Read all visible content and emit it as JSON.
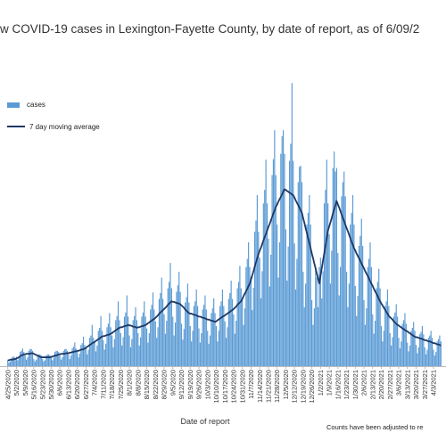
{
  "chart_data": {
    "type": "bar",
    "title": "w COVID-19 cases in Lexington-Fayette County, by date of report, as of 6/09/2",
    "x_label": "Date of report",
    "note": "Counts have been adjusted to re",
    "ylim": [
      0,
      500
    ],
    "categories": [
      "4/25/2020",
      null,
      null,
      null,
      null,
      null,
      null,
      "5/2/2020",
      null,
      null,
      null,
      null,
      null,
      null,
      "5/9/2020",
      null,
      null,
      null,
      null,
      null,
      null,
      "5/16/2020",
      null,
      null,
      null,
      null,
      null,
      null,
      "5/23/2020",
      null,
      null,
      null,
      null,
      null,
      null,
      "5/30/2020",
      null,
      null,
      null,
      null,
      null,
      null,
      "6/6/2020",
      null,
      null,
      null,
      null,
      null,
      null,
      "6/13/2020",
      null,
      null,
      null,
      null,
      null,
      null,
      "6/20/2020",
      null,
      null,
      null,
      null,
      null,
      null,
      "6/27/2020",
      null,
      null,
      null,
      null,
      null,
      null,
      "7/4/2020",
      null,
      null,
      null,
      null,
      null,
      null,
      "7/11/2020",
      null,
      null,
      null,
      null,
      null,
      null,
      "7/18/2020",
      null,
      null,
      null,
      null,
      null,
      null,
      "7/25/2020",
      null,
      null,
      null,
      null,
      null,
      null,
      "8/1/2020",
      null,
      null,
      null,
      null,
      null,
      null,
      "8/8/2020",
      null,
      null,
      null,
      null,
      null,
      null,
      "8/15/2020",
      null,
      null,
      null,
      null,
      null,
      null,
      "8/22/2020",
      null,
      null,
      null,
      null,
      null,
      null,
      "8/29/2020",
      null,
      null,
      null,
      null,
      null,
      null,
      "9/5/2020",
      null,
      null,
      null,
      null,
      null,
      null,
      "9/12/2020",
      null,
      null,
      null,
      null,
      null,
      null,
      "9/19/2020",
      null,
      null,
      null,
      null,
      null,
      null,
      "9/26/2020",
      null,
      null,
      null,
      null,
      null,
      null,
      "10/3/2020",
      null,
      null,
      null,
      null,
      null,
      null,
      "10/10/2020",
      null,
      null,
      null,
      null,
      null,
      null,
      "10/17/2020",
      null,
      null,
      null,
      null,
      null,
      null,
      "10/24/2020",
      null,
      null,
      null,
      null,
      null,
      null,
      "10/31/2020",
      null,
      null,
      null,
      null,
      null,
      null,
      "11/7/2020",
      null,
      null,
      null,
      null,
      null,
      null,
      "11/14/2020",
      null,
      null,
      null,
      null,
      null,
      null,
      "11/21/2020",
      null,
      null,
      null,
      null,
      null,
      null,
      "11/28/2020",
      null,
      null,
      null,
      null,
      null,
      null,
      "12/5/2020",
      null,
      null,
      null,
      null,
      null,
      null,
      "12/12/2020",
      null,
      null,
      null,
      null,
      null,
      null,
      "12/19/2020",
      null,
      null,
      null,
      null,
      null,
      null,
      "12/26/2020",
      null,
      null,
      null,
      null,
      null,
      null,
      "1/2/2021",
      null,
      null,
      null,
      null,
      null,
      null,
      "1/9/2021",
      null,
      null,
      null,
      null,
      null,
      null,
      "1/16/2021",
      null,
      null,
      null,
      null,
      null,
      null,
      "1/23/2021",
      null,
      null,
      null,
      null,
      null,
      null,
      "1/30/2021",
      null,
      null,
      null,
      null,
      null,
      null,
      "2/6/2021",
      null,
      null,
      null,
      null,
      null,
      null,
      "2/13/2021",
      null,
      null,
      null,
      null,
      null,
      null,
      "2/20/2021",
      null,
      null,
      null,
      null,
      null,
      null,
      "2/27/2021",
      null,
      null,
      null,
      null,
      null,
      null,
      "3/6/2021",
      null,
      null,
      null,
      null,
      null,
      null,
      "3/13/2021",
      null,
      null,
      null,
      null,
      null,
      null,
      "3/20/2021",
      null,
      null,
      null,
      null,
      null,
      null,
      "3/27/2021",
      null,
      null,
      null,
      null,
      null,
      null,
      "4/3/2021",
      null,
      null,
      null,
      null,
      null,
      null
    ],
    "series": [
      {
        "name": "cases",
        "kind": "bar",
        "color": "#5b9bd5",
        "values": [
          10,
          6,
          8,
          14,
          16,
          16,
          14,
          16,
          10,
          14,
          24,
          26,
          30,
          24,
          18,
          11,
          15,
          26,
          29,
          29,
          26,
          12,
          8,
          11,
          18,
          20,
          20,
          18,
          12,
          8,
          10,
          18,
          20,
          20,
          18,
          16,
          10,
          14,
          24,
          26,
          26,
          24,
          18,
          11,
          15,
          26,
          29,
          29,
          26,
          20,
          12,
          18,
          30,
          33,
          40,
          30,
          24,
          15,
          21,
          36,
          39,
          50,
          36,
          32,
          20,
          28,
          48,
          52,
          70,
          48,
          40,
          25,
          35,
          60,
          65,
          85,
          60,
          44,
          28,
          38,
          66,
          72,
          90,
          66,
          52,
          32,
          46,
          78,
          85,
          110,
          78,
          56,
          35,
          49,
          84,
          91,
          120,
          84,
          52,
          32,
          46,
          78,
          85,
          100,
          78,
          56,
          35,
          49,
          84,
          91,
          110,
          84,
          64,
          40,
          56,
          96,
          104,
          125,
          96,
          76,
          48,
          66,
          114,
          124,
          150,
          114,
          88,
          55,
          77,
          132,
          143,
          175,
          132,
          84,
          52,
          74,
          126,
          137,
          160,
          126,
          72,
          45,
          63,
          108,
          117,
          140,
          108,
          68,
          42,
          60,
          102,
          110,
          130,
          102,
          64,
          40,
          56,
          96,
          104,
          120,
          96,
          60,
          38,
          52,
          90,
          98,
          115,
          90,
          68,
          42,
          60,
          102,
          110,
          130,
          102,
          76,
          48,
          66,
          114,
          124,
          145,
          114,
          88,
          55,
          77,
          132,
          143,
          170,
          132,
          112,
          70,
          98,
          168,
          182,
          210,
          168,
          152,
          95,
          133,
          228,
          247,
          290,
          228,
          184,
          115,
          161,
          276,
          299,
          350,
          276,
          216,
          135,
          189,
          324,
          351,
          400,
          324,
          240,
          150,
          210,
          360,
          390,
          400,
          360,
          232,
          145,
          203,
          348,
          377,
          480,
          348,
          208,
          130,
          182,
          312,
          338,
          340,
          312,
          160,
          100,
          140,
          240,
          260,
          290,
          240,
          112,
          70,
          98,
          168,
          150,
          100,
          168,
          184,
          115,
          161,
          276,
          299,
          350,
          276,
          224,
          140,
          196,
          336,
          364,
          330,
          336,
          192,
          120,
          168,
          288,
          312,
          330,
          288,
          160,
          100,
          140,
          240,
          260,
          290,
          240,
          136,
          85,
          119,
          204,
          221,
          250,
          204,
          112,
          70,
          98,
          168,
          182,
          210,
          168,
          88,
          55,
          77,
          132,
          143,
          165,
          132,
          68,
          42,
          60,
          102,
          110,
          130,
          102,
          56,
          35,
          49,
          84,
          91,
          105,
          84,
          48,
          30,
          42,
          72,
          78,
          90,
          72,
          40,
          25,
          35,
          60,
          65,
          75,
          60,
          36,
          22,
          32,
          54,
          58,
          68,
          54,
          32,
          20,
          28,
          48,
          52,
          60,
          48,
          28,
          18,
          24,
          42,
          46,
          52,
          42
        ]
      },
      {
        "name": "7 day moving average",
        "kind": "line",
        "color": "#1f3864",
        "values": [
          10,
          10,
          11,
          11,
          11,
          12,
          12,
          13,
          14,
          15,
          17,
          18,
          19,
          20,
          20,
          21,
          21,
          21,
          21,
          22,
          22,
          21,
          20,
          19,
          18,
          17,
          16,
          15,
          15,
          15,
          15,
          15,
          15,
          15,
          15,
          16,
          16,
          17,
          18,
          18,
          19,
          20,
          20,
          21,
          21,
          21,
          21,
          22,
          22,
          22,
          23,
          23,
          24,
          24,
          25,
          25,
          26,
          26,
          27,
          28,
          28,
          29,
          30,
          31,
          33,
          34,
          36,
          37,
          39,
          40,
          41,
          43,
          44,
          46,
          47,
          49,
          50,
          51,
          51,
          52,
          53,
          53,
          54,
          55,
          56,
          58,
          59,
          61,
          62,
          64,
          65,
          66,
          66,
          67,
          68,
          68,
          69,
          70,
          69,
          69,
          68,
          67,
          67,
          66,
          65,
          66,
          66,
          67,
          68,
          68,
          69,
          70,
          71,
          73,
          74,
          76,
          77,
          79,
          80,
          82,
          84,
          86,
          89,
          91,
          93,
          95,
          97,
          99,
          101,
          104,
          106,
          108,
          110,
          109,
          109,
          108,
          107,
          107,
          106,
          105,
          103,
          101,
          99,
          96,
          94,
          92,
          90,
          89,
          89,
          88,
          87,
          87,
          86,
          85,
          84,
          84,
          83,
          82,
          82,
          81,
          80,
          79,
          79,
          78,
          77,
          77,
          76,
          75,
          76,
          78,
          79,
          81,
          82,
          84,
          85,
          86,
          88,
          89,
          91,
          92,
          94,
          95,
          97,
          99,
          101,
          104,
          106,
          108,
          110,
          114,
          119,
          123,
          127,
          131,
          136,
          140,
          147,
          154,
          161,
          169,
          176,
          183,
          190,
          196,
          201,
          207,
          213,
          219,
          224,
          230,
          236,
          241,
          247,
          253,
          259,
          264,
          270,
          274,
          279,
          283,
          287,
          291,
          296,
          300,
          299,
          297,
          296,
          294,
          293,
          291,
          290,
          286,
          281,
          277,
          273,
          269,
          264,
          260,
          251,
          243,
          234,
          226,
          217,
          209,
          200,
          191,
          183,
          174,
          166,
          157,
          149,
          140,
          153,
          166,
          179,
          191,
          204,
          217,
          230,
          237,
          244,
          251,
          259,
          266,
          273,
          280,
          274,
          269,
          263,
          257,
          251,
          246,
          240,
          234,
          229,
          223,
          217,
          211,
          206,
          200,
          196,
          191,
          187,
          183,
          179,
          174,
          170,
          166,
          161,
          157,
          153,
          149,
          144,
          140,
          136,
          131,
          127,
          123,
          119,
          114,
          110,
          106,
          103,
          99,
          96,
          92,
          89,
          85,
          83,
          81,
          79,
          76,
          74,
          72,
          70,
          69,
          67,
          66,
          64,
          63,
          61,
          60,
          59,
          57,
          56,
          54,
          53,
          51,
          50,
          49,
          49,
          48,
          47,
          47,
          46,
          45,
          44,
          44,
          43,
          42,
          42,
          41,
          40,
          39,
          39,
          38,
          37,
          37,
          36,
          35
        ]
      }
    ]
  }
}
